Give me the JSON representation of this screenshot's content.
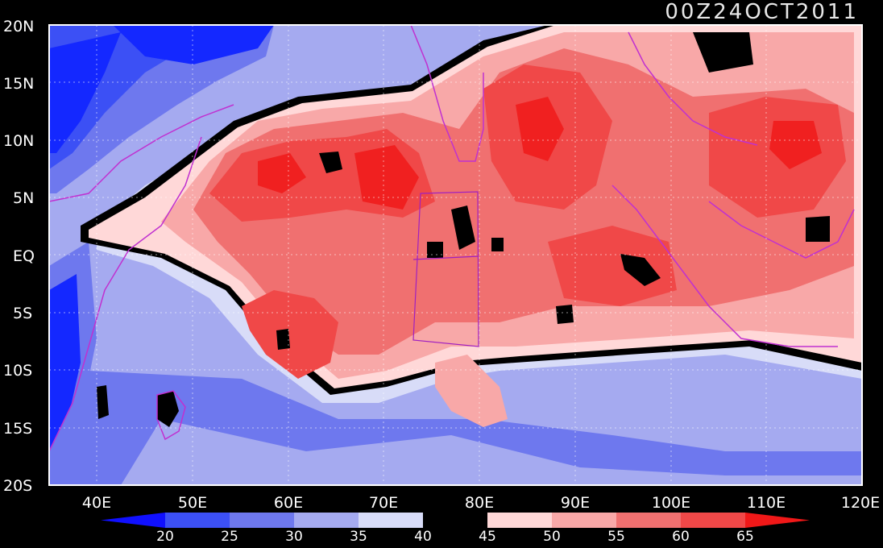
{
  "map": {
    "timestamp": "00Z24OCT2011",
    "lat_labels": [
      "20N",
      "15N",
      "10N",
      "5N",
      "EQ",
      "5S",
      "10S",
      "15S",
      "20S"
    ],
    "lon_labels": [
      "40E",
      "50E",
      "60E",
      "70E",
      "80E",
      "90E",
      "100E",
      "110E",
      "120E"
    ],
    "lat_range": [
      -20,
      20
    ],
    "lon_range": [
      35,
      120
    ],
    "grid": true
  },
  "colorbar": {
    "levels": [
      "20",
      "25",
      "30",
      "35",
      "40",
      "45",
      "50",
      "55",
      "60",
      "65"
    ],
    "colors": [
      "#1428ff",
      "#3c50f5",
      "#6e78ee",
      "#a5aaf0",
      "#d8dcf8",
      "#000000",
      "#ffd8d8",
      "#f8a8a8",
      "#f07070",
      "#f04848",
      "#f02020"
    ],
    "under_color": "#1010ff",
    "over_color": "#f01818"
  }
}
